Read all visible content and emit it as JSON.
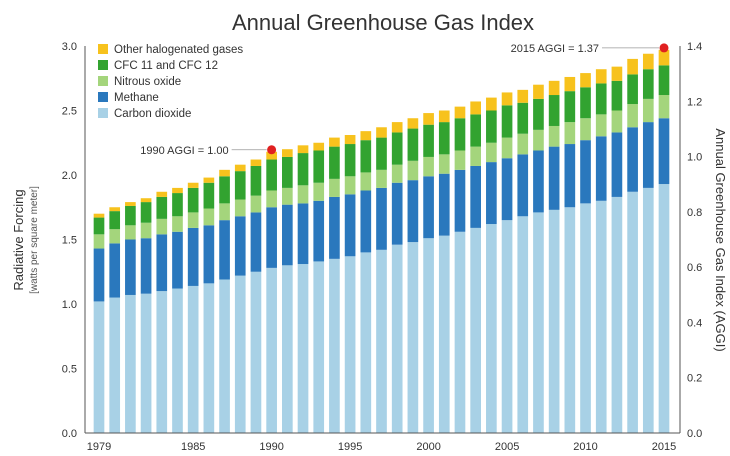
{
  "chart_data": {
    "type": "bar",
    "stacked": true,
    "title": "Annual Greenhouse Gas Index",
    "ylabel": "Radiative Forcing",
    "ylabel_sub": "[watts per square meter]",
    "y2label": "Annual Greenhouse Gas Index (AGGI)",
    "ylim": [
      0,
      3.0
    ],
    "y2lim": [
      0,
      1.4
    ],
    "yticks": [
      "0.0",
      "0.5",
      "1.0",
      "1.5",
      "2.0",
      "2.5",
      "3.0"
    ],
    "y2ticks": [
      "0.0",
      "0.2",
      "0.4",
      "0.6",
      "0.8",
      "1.0",
      "1.2",
      "1.4"
    ],
    "xtick_labels": [
      "1979",
      "1985",
      "1990",
      "1995",
      "2000",
      "2005",
      "2010",
      "2015"
    ],
    "legend_position": "top-left",
    "grid": false,
    "categories": [
      "1979",
      "1980",
      "1981",
      "1982",
      "1983",
      "1984",
      "1985",
      "1986",
      "1987",
      "1988",
      "1989",
      "1990",
      "1991",
      "1992",
      "1993",
      "1994",
      "1995",
      "1996",
      "1997",
      "1998",
      "1999",
      "2000",
      "2001",
      "2002",
      "2003",
      "2004",
      "2005",
      "2006",
      "2007",
      "2008",
      "2009",
      "2010",
      "2011",
      "2012",
      "2013",
      "2014",
      "2015"
    ],
    "series": [
      {
        "name": "Carbon dioxide",
        "color": "#a8d1e6",
        "values": [
          1.02,
          1.05,
          1.07,
          1.08,
          1.1,
          1.12,
          1.14,
          1.16,
          1.19,
          1.22,
          1.25,
          1.28,
          1.3,
          1.31,
          1.33,
          1.35,
          1.37,
          1.4,
          1.42,
          1.46,
          1.48,
          1.51,
          1.53,
          1.56,
          1.59,
          1.62,
          1.65,
          1.68,
          1.71,
          1.73,
          1.75,
          1.78,
          1.8,
          1.83,
          1.87,
          1.9,
          1.93
        ]
      },
      {
        "name": "Methane",
        "color": "#2a78bd",
        "values": [
          0.41,
          0.42,
          0.43,
          0.43,
          0.44,
          0.44,
          0.45,
          0.45,
          0.46,
          0.46,
          0.46,
          0.47,
          0.47,
          0.47,
          0.47,
          0.48,
          0.48,
          0.48,
          0.48,
          0.48,
          0.48,
          0.48,
          0.48,
          0.48,
          0.48,
          0.48,
          0.48,
          0.48,
          0.48,
          0.49,
          0.49,
          0.49,
          0.5,
          0.5,
          0.5,
          0.51,
          0.51
        ]
      },
      {
        "name": "Nitrous oxide",
        "color": "#a4d57c",
        "values": [
          0.11,
          0.11,
          0.11,
          0.12,
          0.12,
          0.12,
          0.12,
          0.13,
          0.13,
          0.13,
          0.13,
          0.13,
          0.13,
          0.14,
          0.14,
          0.14,
          0.14,
          0.14,
          0.14,
          0.14,
          0.15,
          0.15,
          0.15,
          0.15,
          0.15,
          0.15,
          0.16,
          0.16,
          0.16,
          0.16,
          0.17,
          0.17,
          0.17,
          0.17,
          0.18,
          0.18,
          0.18
        ]
      },
      {
        "name": "CFC 11 and CFC 12",
        "color": "#32a330",
        "values": [
          0.13,
          0.14,
          0.15,
          0.16,
          0.17,
          0.18,
          0.19,
          0.2,
          0.21,
          0.22,
          0.23,
          0.24,
          0.24,
          0.25,
          0.25,
          0.25,
          0.25,
          0.25,
          0.25,
          0.25,
          0.25,
          0.25,
          0.25,
          0.25,
          0.25,
          0.25,
          0.25,
          0.24,
          0.24,
          0.24,
          0.24,
          0.24,
          0.24,
          0.23,
          0.23,
          0.23,
          0.23
        ]
      },
      {
        "name": "Other halogenated gases",
        "color": "#f7c21d",
        "values": [
          0.03,
          0.03,
          0.03,
          0.03,
          0.04,
          0.04,
          0.04,
          0.04,
          0.05,
          0.05,
          0.05,
          0.06,
          0.06,
          0.06,
          0.06,
          0.07,
          0.07,
          0.07,
          0.08,
          0.08,
          0.08,
          0.09,
          0.09,
          0.09,
          0.1,
          0.1,
          0.1,
          0.1,
          0.11,
          0.11,
          0.11,
          0.11,
          0.11,
          0.11,
          0.12,
          0.12,
          0.12
        ]
      }
    ],
    "annotations": [
      {
        "text": "1990 AGGI = 1.00",
        "category": "1990"
      },
      {
        "text": "2015 AGGI = 1.37",
        "category": "2015"
      }
    ],
    "annotation_marker_color": "#e02020"
  }
}
